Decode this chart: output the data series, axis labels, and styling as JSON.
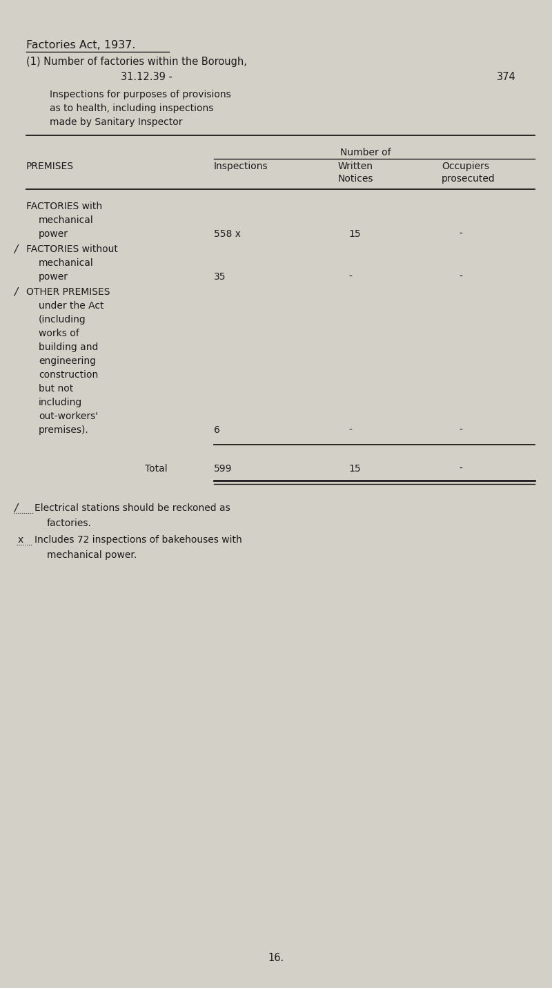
{
  "bg_color": "#d3d0c8",
  "text_color": "#1a1a1a",
  "title_line1": "Factories Act, 1937.",
  "title_line2": "(1) Number of factories within the Borough,",
  "title_line3": "31.12.39 -",
  "page_number_header": "374",
  "subtitle_line1": "Inspections for purposes of provisions",
  "subtitle_line2": "as to health, including inspections",
  "subtitle_line3": "made by Sanitary Inspector",
  "col_header_span": "Number of",
  "col1_header": "PREMISES",
  "col2_header_line1": "Inspections",
  "col3_header_line1": "Written",
  "col4_header_line1": "Occupiers",
  "col3_header_line2": "Notices",
  "col4_header_line2": "prosecuted",
  "row1_label_line1": "FACTORIES with",
  "row1_label_line2": "mechanical",
  "row1_label_line3": "power",
  "row1_col2": "558 x",
  "row1_col3": "15",
  "row1_col4": "-",
  "row2_label_line1": "FACTORIES without",
  "row2_label_line2": "mechanical",
  "row2_label_line3": "power",
  "row2_col2": "35",
  "row2_col3": "-",
  "row2_col4": "-",
  "row3_label_line1": "OTHER PREMISES",
  "row3_label_line2": "under the Act",
  "row3_label_line3": "(including",
  "row3_label_line4": "works of",
  "row3_label_line5": "building and",
  "row3_label_line6": "engineering",
  "row3_label_line7": "construction",
  "row3_label_line8": "but not",
  "row3_label_line9": "including",
  "row3_label_line10": "out-workers'",
  "row3_label_line11": "premises).",
  "row3_col2": "6",
  "row3_col3": "-",
  "row3_col4": "-",
  "total_label": "Total",
  "total_col2": "599",
  "total_col3": "15",
  "total_col4": "-",
  "footnote1_line1": "Electrical stations should be reckoned as",
  "footnote1_line2": "factories.",
  "footnote2_line1": "Includes 72 inspections of bakehouses with",
  "footnote2_line2": "mechanical power.",
  "page_number_footer": "16.",
  "figw": 8.0,
  "figh": 14.31,
  "dpi": 100
}
